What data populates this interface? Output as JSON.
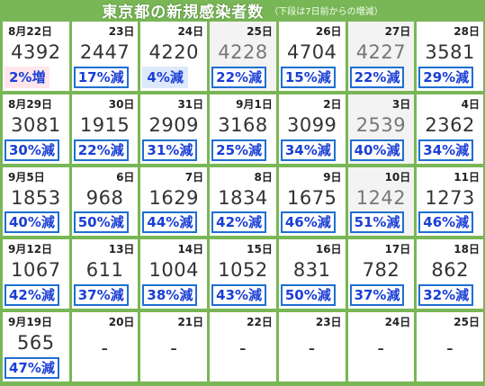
{
  "header": {
    "title": "東京都の新規感染者数",
    "note": "（下段は7日前からの増減）"
  },
  "rows": [
    [
      {
        "date": "8月22日",
        "count": "4392",
        "change": "2%増",
        "type": "inc"
      },
      {
        "date": "23日",
        "count": "2447",
        "change": "17%減"
      },
      {
        "date": "24日",
        "count": "4220",
        "change": "4%減",
        "type": "lightblue"
      },
      {
        "date": "25日",
        "count": "4228",
        "change": "22%減",
        "faded": true
      },
      {
        "date": "26日",
        "count": "4704",
        "change": "15%減"
      },
      {
        "date": "27日",
        "count": "4227",
        "change": "22%減",
        "faded": true
      },
      {
        "date": "28日",
        "count": "3581",
        "change": "29%減"
      }
    ],
    [
      {
        "date": "8月29日",
        "count": "3081",
        "change": "30%減"
      },
      {
        "date": "30日",
        "count": "1915",
        "change": "22%減"
      },
      {
        "date": "31日",
        "count": "2909",
        "change": "31%減"
      },
      {
        "date": "9月1日",
        "count": "3168",
        "change": "25%減"
      },
      {
        "date": "2日",
        "count": "3099",
        "change": "34%減"
      },
      {
        "date": "3日",
        "count": "2539",
        "change": "40%減",
        "faded": true
      },
      {
        "date": "4日",
        "count": "2362",
        "change": "34%減"
      }
    ],
    [
      {
        "date": "9月5日",
        "count": "1853",
        "change": "40%減"
      },
      {
        "date": "6日",
        "count": "968",
        "change": "50%減"
      },
      {
        "date": "7日",
        "count": "1629",
        "change": "44%減"
      },
      {
        "date": "8日",
        "count": "1834",
        "change": "42%減"
      },
      {
        "date": "9日",
        "count": "1675",
        "change": "46%減"
      },
      {
        "date": "10日",
        "count": "1242",
        "change": "51%減",
        "faded": true
      },
      {
        "date": "11日",
        "count": "1273",
        "change": "46%減"
      }
    ],
    [
      {
        "date": "9月12日",
        "count": "1067",
        "change": "42%減"
      },
      {
        "date": "13日",
        "count": "611",
        "change": "37%減"
      },
      {
        "date": "14日",
        "count": "1004",
        "change": "38%減"
      },
      {
        "date": "15日",
        "count": "1052",
        "change": "43%減"
      },
      {
        "date": "16日",
        "count": "831",
        "change": "50%減"
      },
      {
        "date": "17日",
        "count": "782",
        "change": "37%減"
      },
      {
        "date": "18日",
        "count": "862",
        "change": "32%減"
      }
    ],
    [
      {
        "date": "9月19日",
        "count": "565",
        "change": "47%減"
      },
      {
        "date": "20日",
        "count": "-",
        "change": ""
      },
      {
        "date": "21日",
        "count": "-",
        "change": ""
      },
      {
        "date": "22日",
        "count": "-",
        "change": ""
      },
      {
        "date": "23日",
        "count": "-",
        "change": ""
      },
      {
        "date": "24日",
        "count": "-",
        "change": ""
      },
      {
        "date": "25日",
        "count": "-",
        "change": ""
      }
    ]
  ],
  "colors": {
    "background": "#79b656",
    "badge_text": "#1a3fd6",
    "badge_border": "#1e6fd0",
    "increase_bg": "#ffe6ea"
  }
}
